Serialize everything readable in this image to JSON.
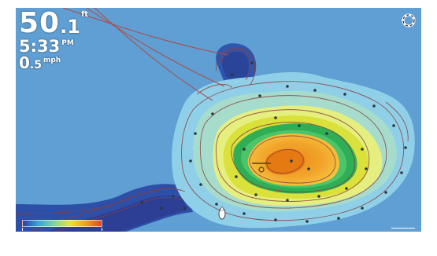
{
  "readouts": {
    "depth_whole": "50",
    "depth_decimal": ".1",
    "depth_unit": "ft",
    "time": "5:33",
    "time_suffix": "PM",
    "speed_whole": "0",
    "speed_decimal": ".5",
    "speed_unit": "mph"
  },
  "icons": {
    "settings": "settings-ring-icon",
    "boat": "boat-icon"
  },
  "colors": {
    "water": "#5f9fd3",
    "deep": "#2b4aa0",
    "mid": "#3aa6de",
    "shallow": "#e9e33b",
    "peak": "#f0a022",
    "contour": "#8a3d3d",
    "track": "#a8504f"
  }
}
